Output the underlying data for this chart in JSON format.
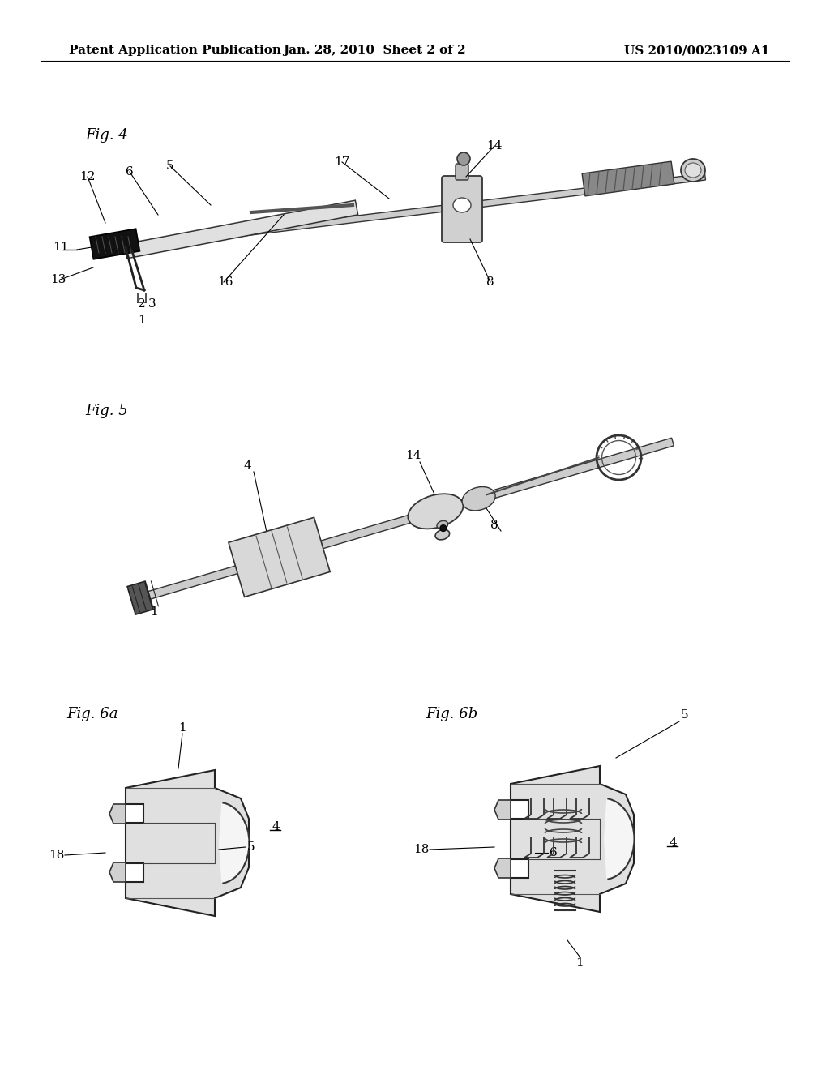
{
  "background_color": "#ffffff",
  "header_left": "Patent Application Publication",
  "header_center": "Jan. 28, 2010  Sheet 2 of 2",
  "header_right": "US 2010/0023109 A1",
  "header_font_size": 11,
  "fig4_label": "Fig. 4",
  "fig5_label": "Fig. 5",
  "fig6a_label": "Fig. 6a",
  "fig6b_label": "Fig. 6b",
  "label_font_size": 13,
  "ref_font_size": 11,
  "line_color": "#000000"
}
